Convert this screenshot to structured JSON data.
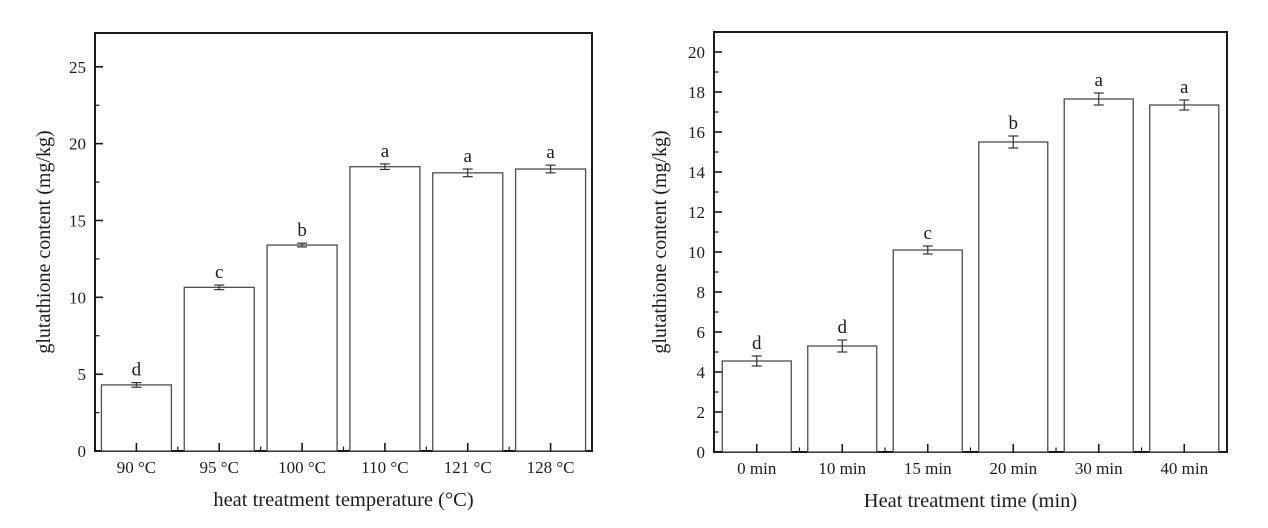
{
  "figure": {
    "background": "#ffffff",
    "description": "Two bar charts of glutathione content"
  },
  "chart_data": [
    {
      "type": "bar",
      "title": "",
      "xlabel": "heat treatment temperature (°C)",
      "ylabel": "glutathione content (mg/kg)",
      "categories": [
        "90 °C",
        "95 °C",
        "100 °C",
        "110 °C",
        "121 °C",
        "128 °C"
      ],
      "values": [
        4.3,
        10.65,
        13.4,
        18.5,
        18.1,
        18.35
      ],
      "errors": [
        0.15,
        0.15,
        0.12,
        0.18,
        0.25,
        0.25
      ],
      "sig_letters": [
        "d",
        "c",
        "b",
        "a",
        "a",
        "a"
      ],
      "ylim": [
        0,
        27.2
      ],
      "yticks": [
        0,
        5,
        10,
        15,
        20,
        25
      ],
      "y_minor_step": 2.5,
      "grid": false,
      "legend": null,
      "bar_fill": "#ffffff",
      "bar_stroke": "#4d4d4d",
      "axis_color": "#1a1a1a",
      "error_color": "#333333"
    },
    {
      "type": "bar",
      "title": "",
      "xlabel": "Heat treatment time (min)",
      "ylabel": "glutathione content (mg/kg)",
      "categories": [
        "0 min",
        "10 min",
        "15 min",
        "20 min",
        "30 min",
        "40 min"
      ],
      "values": [
        4.55,
        5.3,
        10.1,
        15.5,
        17.65,
        17.35
      ],
      "errors": [
        0.25,
        0.3,
        0.2,
        0.3,
        0.3,
        0.25
      ],
      "sig_letters": [
        "d",
        "d",
        "c",
        "b",
        "a",
        "a"
      ],
      "ylim": [
        0,
        21
      ],
      "yticks": [
        0,
        2,
        4,
        6,
        8,
        10,
        12,
        14,
        16,
        18,
        20
      ],
      "y_minor_step": 1,
      "grid": false,
      "legend": null,
      "bar_fill": "#ffffff",
      "bar_stroke": "#4d4d4d",
      "axis_color": "#1a1a1a",
      "error_color": "#333333"
    }
  ]
}
